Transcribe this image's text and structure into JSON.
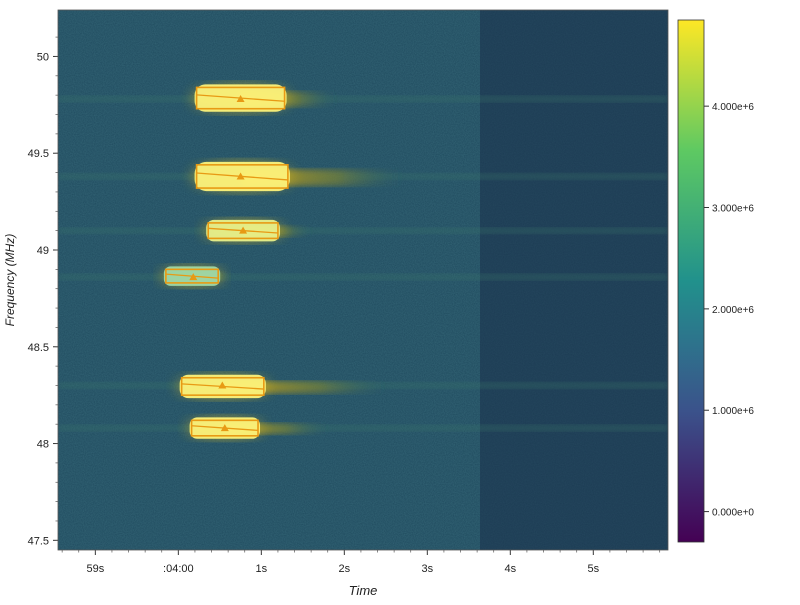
{
  "chart_data": {
    "type": "heatmap",
    "title": "",
    "xlabel": "Time",
    "ylabel": "Frequency (MHz)",
    "x_tick_labels": [
      "59s",
      ":04:00",
      "1s",
      "2s",
      "3s",
      "4s",
      "5s"
    ],
    "x_tick_seconds": [
      -1,
      0,
      1,
      2,
      3,
      4,
      5
    ],
    "xlim_seconds": [
      -1.45,
      5.9
    ],
    "y_ticks": [
      47.5,
      48,
      48.5,
      49,
      49.5,
      50
    ],
    "y_tick_labels": [
      "47.5",
      "48",
      "48.5",
      "49",
      "49.5",
      "50"
    ],
    "ylim": [
      47.45,
      50.24
    ],
    "colorbar": {
      "label": "",
      "ticks": [
        0,
        1000000,
        2000000,
        3000000,
        4000000
      ],
      "tick_labels": [
        "0.000e+0",
        "1.000e+6",
        "2.000e+6",
        "3.000e+6",
        "4.000e+6"
      ],
      "range": [
        -300000,
        4850000
      ],
      "colormap": [
        "#440154",
        "#3b528b",
        "#21918c",
        "#5ec962",
        "#fde725"
      ]
    },
    "background_color": "#1f4a5e",
    "detections": [
      {
        "t_start": 0.22,
        "t_end": 1.28,
        "f_low": 49.73,
        "f_high": 49.84,
        "peak_t": 0.75,
        "peak_f": 49.78,
        "intensity": "saturated",
        "trail_end": 1.9
      },
      {
        "t_start": 0.22,
        "t_end": 1.32,
        "f_low": 49.32,
        "f_high": 49.44,
        "peak_t": 0.75,
        "peak_f": 49.38,
        "intensity": "saturated",
        "trail_end": 2.7
      },
      {
        "t_start": 0.36,
        "t_end": 1.2,
        "f_low": 49.06,
        "f_high": 49.14,
        "peak_t": 0.78,
        "peak_f": 49.1,
        "intensity": "high",
        "trail_end": 1.6
      },
      {
        "t_start": -0.15,
        "t_end": 0.48,
        "f_low": 48.83,
        "f_high": 48.9,
        "peak_t": 0.18,
        "peak_f": 48.86,
        "intensity": "medium",
        "trail_end": 0.6
      },
      {
        "t_start": 0.04,
        "t_end": 1.03,
        "f_low": 48.25,
        "f_high": 48.34,
        "peak_t": 0.53,
        "peak_f": 48.3,
        "intensity": "saturated",
        "trail_end": 2.5
      },
      {
        "t_start": 0.16,
        "t_end": 0.96,
        "f_low": 48.04,
        "f_high": 48.12,
        "peak_t": 0.56,
        "peak_f": 48.08,
        "intensity": "saturated",
        "trail_end": 1.8
      }
    ]
  }
}
